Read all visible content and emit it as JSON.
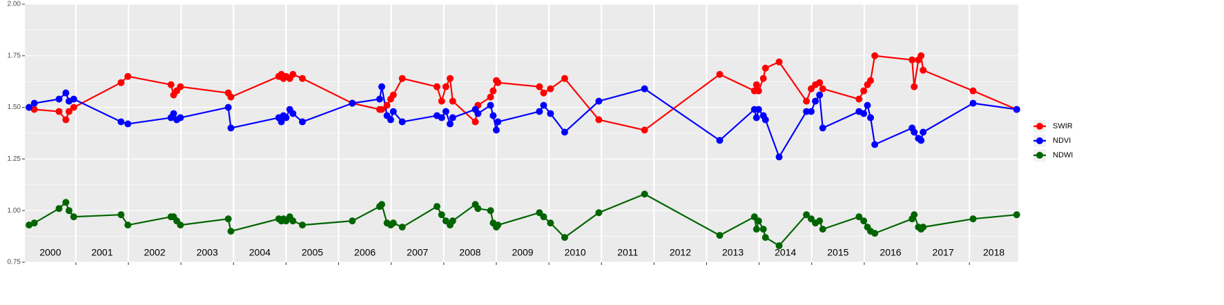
{
  "chart_data": {
    "type": "line",
    "x": [
      2000.11,
      2000.21,
      2000.68,
      2000.81,
      2000.87,
      2000.96,
      2001.86,
      2001.99,
      2002.81,
      2002.86,
      2002.92,
      2002.99,
      2003.9,
      2003.95,
      2004.86,
      2004.91,
      2004.95,
      2005.0,
      2005.07,
      2005.13,
      2005.31,
      2006.26,
      2006.78,
      2006.82,
      2006.92,
      2006.99,
      2007.04,
      2007.21,
      2007.87,
      2007.96,
      2008.04,
      2008.12,
      2008.17,
      2008.6,
      2008.65,
      2008.89,
      2008.94,
      2009.0,
      2009.03,
      2009.82,
      2009.9,
      2010.03,
      2010.3,
      2010.95,
      2011.82,
      2013.25,
      2013.91,
      2013.95,
      2013.99,
      2014.08,
      2014.12,
      2014.38,
      2014.9,
      2014.99,
      2015.07,
      2015.15,
      2015.21,
      2015.9,
      2015.99,
      2016.06,
      2016.12,
      2016.2,
      2016.91,
      2016.95,
      2017.03,
      2017.08,
      2017.12,
      2018.07,
      2018.9
    ],
    "series": [
      {
        "name": "SWIR",
        "color": "#ff0000",
        "values": [
          1.5,
          1.49,
          1.48,
          1.44,
          1.48,
          1.5,
          1.62,
          1.65,
          1.61,
          1.56,
          1.58,
          1.6,
          1.57,
          1.55,
          1.65,
          1.66,
          1.64,
          1.65,
          1.64,
          1.66,
          1.64,
          1.52,
          1.49,
          1.49,
          1.51,
          1.54,
          1.56,
          1.64,
          1.6,
          1.53,
          1.6,
          1.64,
          1.53,
          1.43,
          1.51,
          1.55,
          1.58,
          1.63,
          1.62,
          1.6,
          1.57,
          1.59,
          1.64,
          1.44,
          1.39,
          1.66,
          1.58,
          1.61,
          1.58,
          1.64,
          1.69,
          1.72,
          1.53,
          1.59,
          1.61,
          1.62,
          1.59,
          1.54,
          1.58,
          1.61,
          1.63,
          1.75,
          1.73,
          1.6,
          1.73,
          1.75,
          1.68,
          1.58,
          1.49
        ]
      },
      {
        "name": "NDVI",
        "color": "#0000ff",
        "values": [
          1.5,
          1.52,
          1.54,
          1.57,
          1.53,
          1.54,
          1.43,
          1.42,
          1.45,
          1.47,
          1.44,
          1.45,
          1.5,
          1.4,
          1.45,
          1.43,
          1.46,
          1.45,
          1.49,
          1.47,
          1.43,
          1.52,
          1.54,
          1.6,
          1.46,
          1.44,
          1.48,
          1.43,
          1.46,
          1.45,
          1.48,
          1.42,
          1.45,
          1.49,
          1.47,
          1.51,
          1.46,
          1.39,
          1.43,
          1.48,
          1.51,
          1.47,
          1.38,
          1.53,
          1.59,
          1.34,
          1.49,
          1.45,
          1.49,
          1.46,
          1.44,
          1.26,
          1.48,
          1.48,
          1.53,
          1.56,
          1.4,
          1.48,
          1.47,
          1.51,
          1.45,
          1.32,
          1.4,
          1.38,
          1.35,
          1.34,
          1.38,
          1.52,
          1.49
        ]
      },
      {
        "name": "NDWI",
        "color": "#006400",
        "values": [
          0.93,
          0.94,
          1.01,
          1.04,
          1.0,
          0.97,
          0.98,
          0.93,
          0.97,
          0.97,
          0.95,
          0.93,
          0.96,
          0.9,
          0.96,
          0.95,
          0.96,
          0.95,
          0.97,
          0.95,
          0.93,
          0.95,
          1.02,
          1.03,
          0.94,
          0.93,
          0.94,
          0.92,
          1.02,
          0.98,
          0.95,
          0.93,
          0.95,
          1.03,
          1.01,
          1.0,
          0.94,
          0.92,
          0.93,
          0.99,
          0.97,
          0.94,
          0.87,
          0.99,
          1.08,
          0.88,
          0.97,
          0.91,
          0.95,
          0.91,
          0.87,
          0.83,
          0.98,
          0.96,
          0.94,
          0.95,
          0.91,
          0.97,
          0.95,
          0.92,
          0.9,
          0.89,
          0.96,
          0.98,
          0.92,
          0.91,
          0.92,
          0.96,
          0.98
        ]
      }
    ],
    "xlim": [
      2000.03,
      2018.93
    ],
    "xticks": [
      2001,
      2002,
      2003,
      2004,
      2005,
      2006,
      2007,
      2008,
      2009,
      2010,
      2011,
      2012,
      2013,
      2014,
      2015,
      2016,
      2017,
      2018
    ],
    "year_labels": [
      "2000",
      "2001",
      "2002",
      "2003",
      "2004",
      "2005",
      "2006",
      "2007",
      "2008",
      "2009",
      "2010",
      "2011",
      "2012",
      "2013",
      "2014",
      "2015",
      "2016",
      "2017",
      "2018"
    ],
    "ylim": [
      0.75,
      2.0
    ],
    "yticks": [
      {
        "value": 0.75,
        "label": "0.75"
      },
      {
        "value": 1.0,
        "label": "1.00"
      },
      {
        "value": 1.25,
        "label": "1.25"
      },
      {
        "value": 1.5,
        "label": "1.50"
      },
      {
        "value": 1.75,
        "label": "1.75"
      },
      {
        "value": 2.0,
        "label": "2.00"
      }
    ],
    "grid": true,
    "legend": "right"
  }
}
